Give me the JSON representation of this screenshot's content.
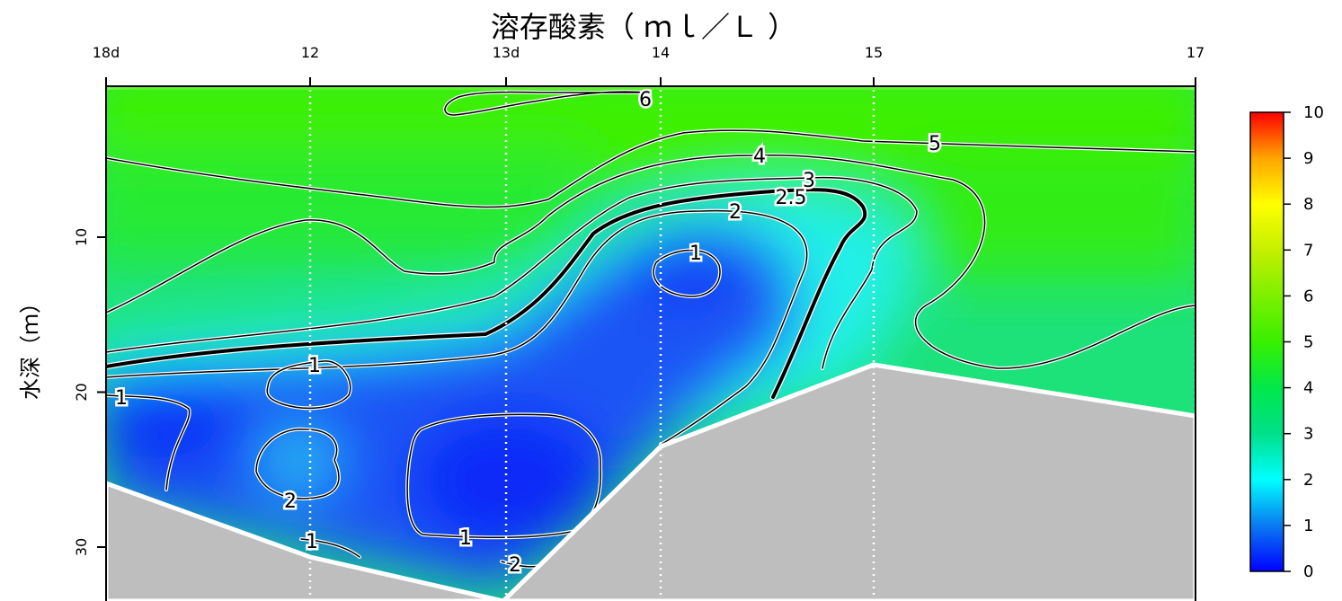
{
  "chart_data": {
    "type": "heatmap",
    "subtype": "filled-contour-section",
    "title": "溶存酸素（ ｍｌ／Ｌ ）",
    "ylabel": "水深（ｍ）",
    "stations": [
      "18d",
      "12",
      "13d",
      "14",
      "15",
      "17"
    ],
    "y_ticks": [
      10,
      20,
      30
    ],
    "ylim": [
      33.5,
      0
    ],
    "colorbar": {
      "ticks": [
        0,
        1,
        2,
        3,
        4,
        5,
        6,
        7,
        8,
        9,
        10
      ],
      "range": [
        0,
        10
      ],
      "colors": [
        "#0000ff",
        "#0a7af2",
        "#00ffff",
        "#00e08a",
        "#00e84a",
        "#38f000",
        "#7df000",
        "#c4f000",
        "#ffff00",
        "#ffa500",
        "#ff0000"
      ]
    },
    "contour_levels": [
      1,
      2,
      2.5,
      3,
      4,
      5,
      6
    ],
    "contour_labels": [
      "6",
      "5",
      "4",
      "3",
      "2.5",
      "2",
      "1",
      "1",
      "1",
      "1",
      "2",
      "1",
      "1",
      "2",
      "1",
      "2"
    ],
    "seafloor_color": "#bebebe",
    "station_lines": "white dotted"
  }
}
